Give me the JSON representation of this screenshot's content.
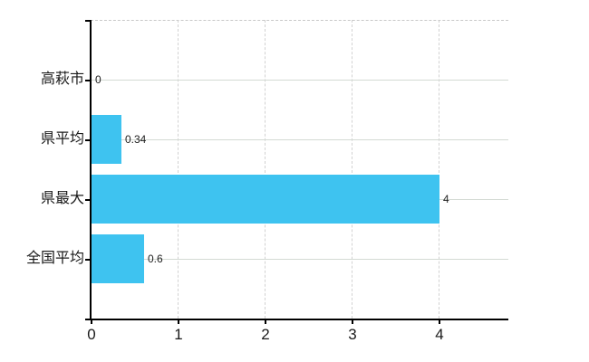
{
  "chart_data": {
    "type": "bar",
    "orientation": "horizontal",
    "title": "",
    "legend": "none",
    "grid": "on",
    "categories": [
      "高萩市",
      "県平均",
      "県最大",
      "全国平均"
    ],
    "values": [
      0,
      0.34,
      4,
      0.6
    ],
    "value_labels": [
      "0",
      "0.34",
      "4",
      "0.6"
    ],
    "x_tick_labels": [
      "0",
      "1",
      "2",
      "3",
      "4"
    ],
    "x_tick_values": [
      0,
      1,
      2,
      3,
      4
    ],
    "x_axis_range": [
      0,
      4.8
    ],
    "colors": {
      "bar": "#3EC3F0",
      "axis": "#000000",
      "gridline": "#D4DAD4",
      "dashed_line": "#C9C9C9",
      "category_text": "#1A1A1A",
      "value_text": "#222222",
      "background": "#FFFFFF"
    }
  }
}
